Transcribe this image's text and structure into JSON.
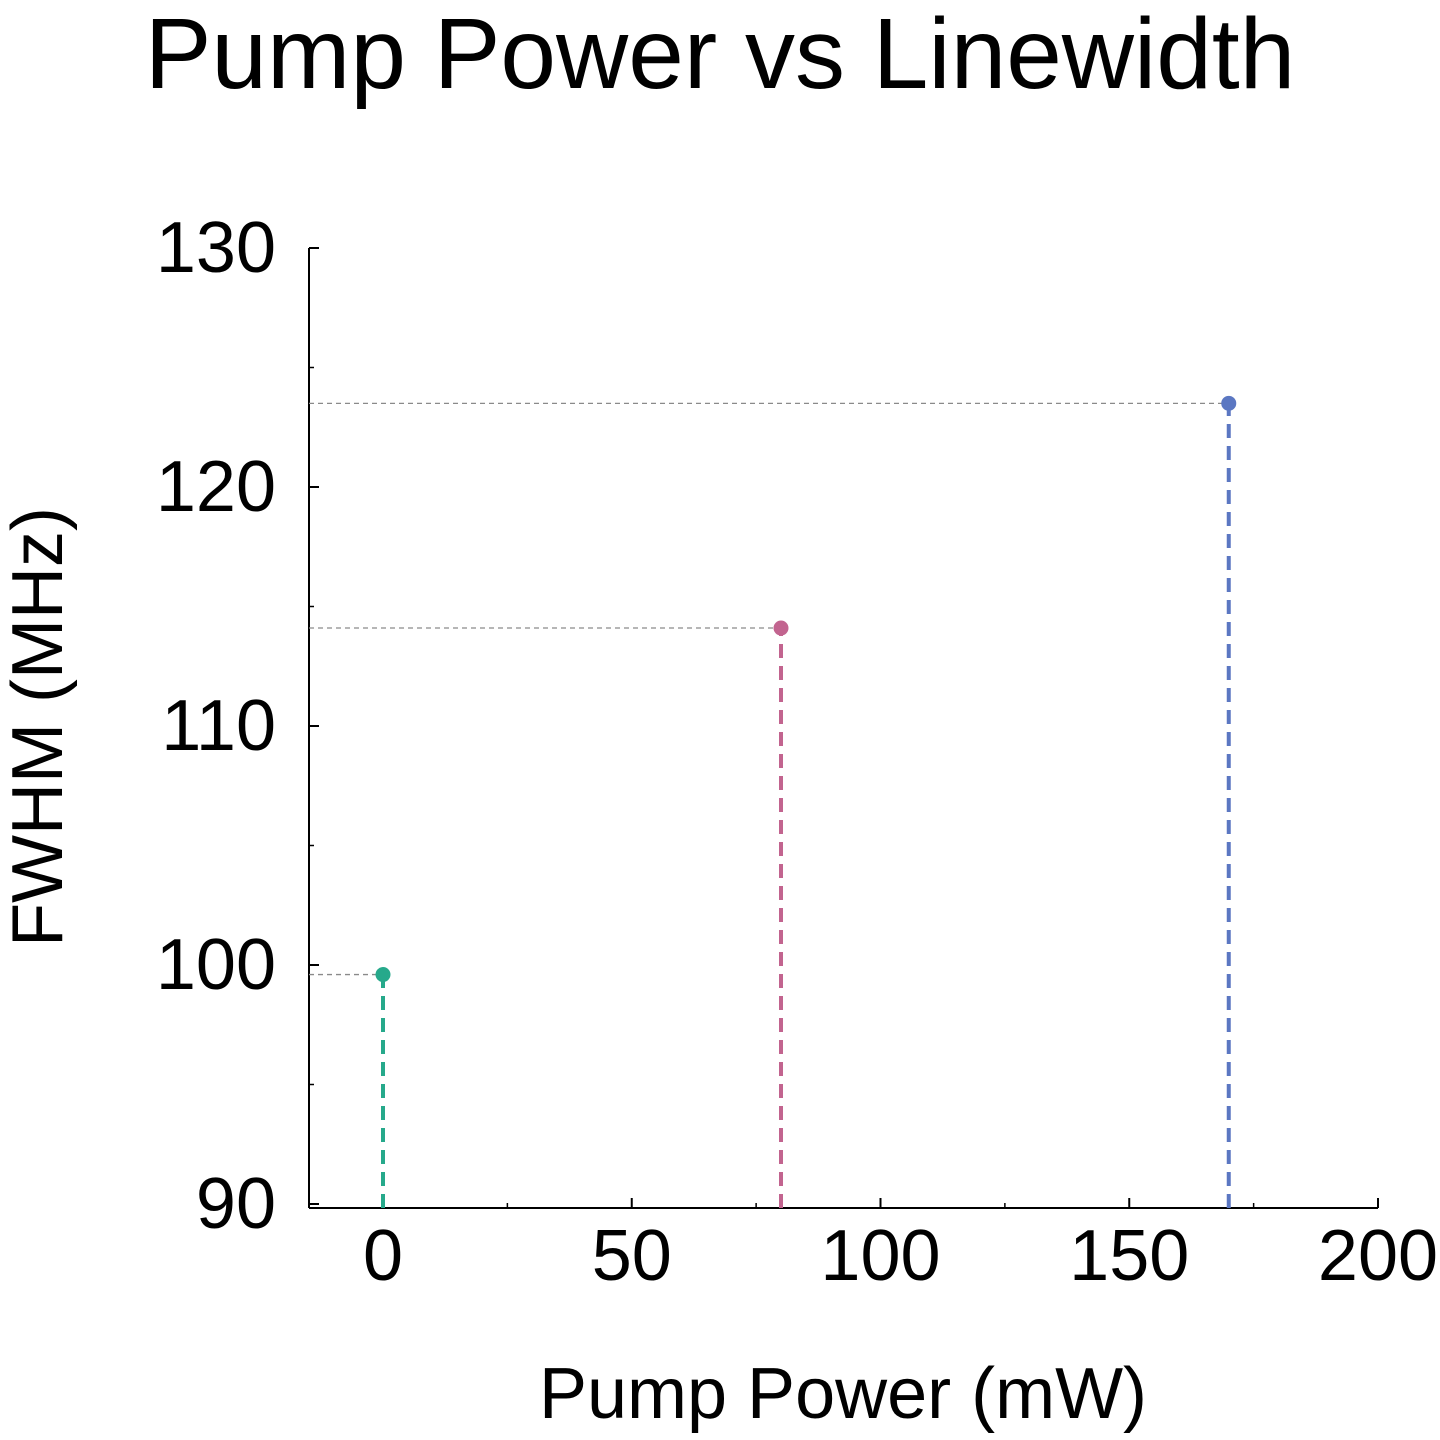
{
  "chart_data": {
    "type": "scatter",
    "title": "Pump Power vs Linewidth",
    "xlabel": "Pump Power (mW)",
    "ylabel": "FWHM (MHz)",
    "xlim": [
      -3,
      200
    ],
    "ylim": [
      90,
      130
    ],
    "x_ticks": [
      "0",
      "50",
      "100",
      "150",
      "200"
    ],
    "y_ticks": [
      "90",
      "100",
      "110",
      "120",
      "130"
    ],
    "x_tick_values": [
      0,
      50,
      100,
      150,
      200
    ],
    "y_tick_values": [
      90,
      100,
      110,
      120,
      130
    ],
    "grid": false,
    "series": [
      {
        "points": [
          {
            "x": 0,
            "y": 99.6,
            "color": "#26a98b"
          },
          {
            "x": 80,
            "y": 114.1,
            "color": "#c2648f"
          },
          {
            "x": 170,
            "y": 123.5,
            "color": "#5b77c2"
          }
        ]
      }
    ]
  }
}
